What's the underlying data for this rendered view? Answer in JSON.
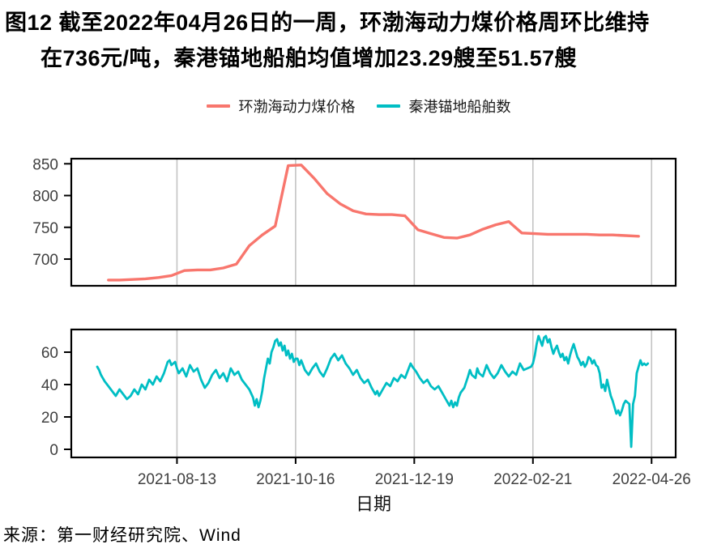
{
  "title": {
    "line1": "图12  截至2022年04月26日的一周，环渤海动力煤价格周环比维持",
    "line2": "在736元/吨，秦港锚地船舶均值增加23.29艘至51.57艘"
  },
  "legend": {
    "items": [
      {
        "label": "环渤海动力煤价格",
        "color": "#F8766D"
      },
      {
        "label": "秦港锚地船舶数",
        "color": "#00BEC4"
      }
    ]
  },
  "source": "来源：第一财经研究院、Wind",
  "colors": {
    "price_line": "#F8766D",
    "ship_line": "#00BEC4",
    "gridline": "#C3C3C3",
    "panel_border": "#000000",
    "tick_text": "#404040"
  },
  "chart_data": {
    "type": "line",
    "title": "环渤海动力煤价格与秦港锚地船舶数",
    "x_axis": {
      "label": "日期",
      "day0_date": "2021-07-01",
      "domain_days": [
        -14,
        312
      ],
      "tick_days": [
        43,
        107,
        171,
        235,
        299
      ],
      "tick_labels": [
        "2021-08-13",
        "2021-10-16",
        "2021-12-19",
        "2022-02-21",
        "2022-04-26"
      ]
    },
    "grid": "vertical-only",
    "legend_position": "top-center",
    "panels": [
      {
        "name": "环渤海动力煤价格",
        "unit": "元/吨",
        "color": "#F8766D",
        "y_ticks": [
          700,
          750,
          800,
          850
        ],
        "y_domain": [
          658,
          858
        ],
        "series": [
          [
            6,
            667
          ],
          [
            12,
            667
          ],
          [
            19,
            668
          ],
          [
            26,
            669
          ],
          [
            33,
            671
          ],
          [
            40,
            674
          ],
          [
            47,
            682
          ],
          [
            54,
            683
          ],
          [
            61,
            683
          ],
          [
            68,
            686
          ],
          [
            75,
            692
          ],
          [
            82,
            721
          ],
          [
            89,
            738
          ],
          [
            96,
            752
          ],
          [
            103,
            847
          ],
          [
            110,
            848
          ],
          [
            117,
            827
          ],
          [
            124,
            803
          ],
          [
            131,
            787
          ],
          [
            138,
            776
          ],
          [
            145,
            771
          ],
          [
            152,
            770
          ],
          [
            159,
            770
          ],
          [
            166,
            768
          ],
          [
            173,
            746
          ],
          [
            180,
            740
          ],
          [
            187,
            734
          ],
          [
            194,
            733
          ],
          [
            201,
            738
          ],
          [
            208,
            747
          ],
          [
            215,
            754
          ],
          [
            222,
            759
          ],
          [
            229,
            741
          ],
          [
            236,
            740
          ],
          [
            243,
            739
          ],
          [
            250,
            739
          ],
          [
            257,
            739
          ],
          [
            264,
            739
          ],
          [
            271,
            738
          ],
          [
            278,
            738
          ],
          [
            285,
            737
          ],
          [
            292,
            736
          ]
        ]
      },
      {
        "name": "秦港锚地船舶数",
        "unit": "艘",
        "color": "#00BEC4",
        "y_ticks": [
          0,
          20,
          40,
          60
        ],
        "y_domain": [
          -5,
          74
        ],
        "series": [
          [
            0,
            51
          ],
          [
            1,
            49
          ],
          [
            2,
            46
          ],
          [
            4,
            42
          ],
          [
            6,
            39
          ],
          [
            8,
            36
          ],
          [
            10,
            33
          ],
          [
            12,
            37
          ],
          [
            14,
            34
          ],
          [
            16,
            31
          ],
          [
            18,
            33
          ],
          [
            20,
            37
          ],
          [
            22,
            34
          ],
          [
            24,
            40
          ],
          [
            26,
            37
          ],
          [
            28,
            43
          ],
          [
            30,
            40
          ],
          [
            32,
            45
          ],
          [
            34,
            42
          ],
          [
            36,
            47
          ],
          [
            38,
            54
          ],
          [
            39,
            55
          ],
          [
            40,
            52
          ],
          [
            42,
            54
          ],
          [
            43,
            50
          ],
          [
            44,
            47
          ],
          [
            46,
            50
          ],
          [
            48,
            45
          ],
          [
            50,
            52
          ],
          [
            52,
            48
          ],
          [
            54,
            50
          ],
          [
            56,
            43
          ],
          [
            58,
            38
          ],
          [
            60,
            41
          ],
          [
            62,
            46
          ],
          [
            64,
            49
          ],
          [
            66,
            44
          ],
          [
            68,
            47
          ],
          [
            70,
            42
          ],
          [
            72,
            50
          ],
          [
            74,
            46
          ],
          [
            76,
            48
          ],
          [
            78,
            43
          ],
          [
            80,
            40
          ],
          [
            82,
            37
          ],
          [
            84,
            32
          ],
          [
            85,
            27
          ],
          [
            86,
            31
          ],
          [
            87,
            26
          ],
          [
            88,
            30
          ],
          [
            89,
            36
          ],
          [
            90,
            44
          ],
          [
            91,
            50
          ],
          [
            92,
            56
          ],
          [
            93,
            53
          ],
          [
            94,
            60
          ],
          [
            95,
            63
          ],
          [
            96,
            67
          ],
          [
            97,
            68
          ],
          [
            98,
            64
          ],
          [
            99,
            66
          ],
          [
            100,
            61
          ],
          [
            101,
            64
          ],
          [
            102,
            58
          ],
          [
            103,
            61
          ],
          [
            104,
            56
          ],
          [
            105,
            59
          ],
          [
            106,
            54
          ],
          [
            107,
            56
          ],
          [
            108,
            56
          ],
          [
            109,
            52
          ],
          [
            110,
            55
          ],
          [
            112,
            49
          ],
          [
            114,
            46
          ],
          [
            116,
            50
          ],
          [
            118,
            53
          ],
          [
            120,
            48
          ],
          [
            122,
            45
          ],
          [
            124,
            50
          ],
          [
            126,
            56
          ],
          [
            128,
            59
          ],
          [
            130,
            55
          ],
          [
            132,
            58
          ],
          [
            134,
            53
          ],
          [
            136,
            50
          ],
          [
            138,
            46
          ],
          [
            140,
            49
          ],
          [
            142,
            44
          ],
          [
            144,
            41
          ],
          [
            146,
            43
          ],
          [
            148,
            38
          ],
          [
            150,
            34
          ],
          [
            151,
            36
          ],
          [
            152,
            33
          ],
          [
            154,
            37
          ],
          [
            156,
            41
          ],
          [
            158,
            39
          ],
          [
            160,
            44
          ],
          [
            162,
            42
          ],
          [
            164,
            46
          ],
          [
            166,
            44
          ],
          [
            168,
            50
          ],
          [
            169,
            53
          ],
          [
            170,
            51
          ],
          [
            172,
            48
          ],
          [
            174,
            44
          ],
          [
            176,
            41
          ],
          [
            178,
            43
          ],
          [
            180,
            39
          ],
          [
            182,
            37
          ],
          [
            184,
            39
          ],
          [
            186,
            35
          ],
          [
            188,
            31
          ],
          [
            190,
            27
          ],
          [
            191,
            30
          ],
          [
            192,
            26
          ],
          [
            193,
            29
          ],
          [
            194,
            27
          ],
          [
            195,
            32
          ],
          [
            196,
            35
          ],
          [
            198,
            38
          ],
          [
            200,
            45
          ],
          [
            201,
            49
          ],
          [
            202,
            46
          ],
          [
            204,
            44
          ],
          [
            205,
            50
          ],
          [
            206,
            47
          ],
          [
            208,
            45
          ],
          [
            210,
            52
          ],
          [
            212,
            47
          ],
          [
            214,
            44
          ],
          [
            216,
            47
          ],
          [
            218,
            52
          ],
          [
            220,
            48
          ],
          [
            222,
            45
          ],
          [
            224,
            48
          ],
          [
            226,
            46
          ],
          [
            228,
            53
          ],
          [
            230,
            49
          ],
          [
            232,
            50
          ],
          [
            234,
            51
          ],
          [
            235,
            53
          ],
          [
            236,
            58
          ],
          [
            237,
            65
          ],
          [
            238,
            70
          ],
          [
            239,
            67
          ],
          [
            240,
            64
          ],
          [
            241,
            69
          ],
          [
            242,
            70
          ],
          [
            243,
            66
          ],
          [
            244,
            68
          ],
          [
            245,
            63
          ],
          [
            246,
            59
          ],
          [
            247,
            62
          ],
          [
            248,
            64
          ],
          [
            249,
            60
          ],
          [
            250,
            57
          ],
          [
            251,
            59
          ],
          [
            252,
            55
          ],
          [
            253,
            57
          ],
          [
            254,
            53
          ],
          [
            255,
            58
          ],
          [
            256,
            62
          ],
          [
            257,
            65
          ],
          [
            258,
            61
          ],
          [
            259,
            57
          ],
          [
            260,
            55
          ],
          [
            261,
            52
          ],
          [
            262,
            54
          ],
          [
            263,
            51
          ],
          [
            264,
            53
          ],
          [
            265,
            57
          ],
          [
            266,
            56
          ],
          [
            267,
            53
          ],
          [
            268,
            55
          ],
          [
            269,
            52
          ],
          [
            270,
            51
          ],
          [
            271,
            47
          ],
          [
            272,
            38
          ],
          [
            273,
            40
          ],
          [
            274,
            36
          ],
          [
            275,
            43
          ],
          [
            276,
            38
          ],
          [
            277,
            33
          ],
          [
            278,
            30
          ],
          [
            279,
            26
          ],
          [
            280,
            22
          ],
          [
            281,
            24
          ],
          [
            282,
            21
          ],
          [
            283,
            24
          ],
          [
            284,
            28
          ],
          [
            285,
            30
          ],
          [
            286,
            29
          ],
          [
            287,
            28
          ],
          [
            288,
            1.5
          ],
          [
            289,
            28
          ],
          [
            290,
            33
          ],
          [
            291,
            47
          ],
          [
            292,
            51
          ],
          [
            293,
            55
          ],
          [
            294,
            52
          ],
          [
            295,
            53
          ],
          [
            296,
            52
          ],
          [
            297,
            53
          ]
        ]
      }
    ],
    "annotations": {
      "latest_price": "736元/吨",
      "latest_ship_mean": "51.57艘",
      "ship_mean_change": "+23.29艘"
    }
  }
}
